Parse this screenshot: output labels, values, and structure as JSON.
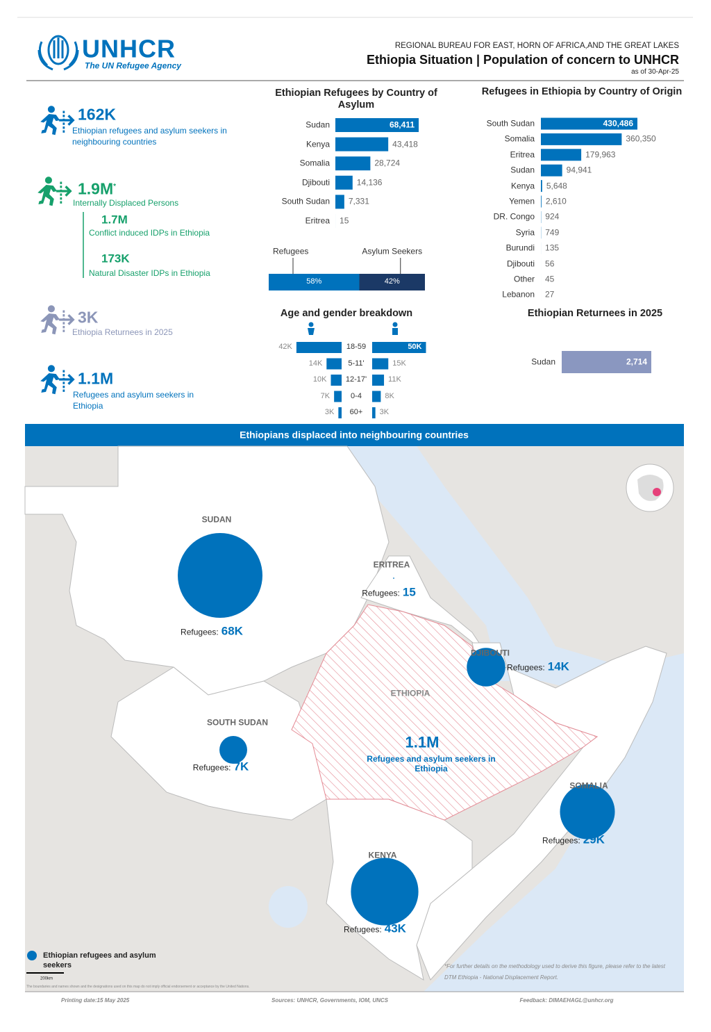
{
  "header": {
    "org": "UNHCR",
    "tagline": "The UN Refugee Agency",
    "bureau": "REGIONAL BUREAU FOR EAST, HORN OF AFRICA,AND THE GREAT LAKES",
    "title": "Ethiopia Situation | Population of concern to UNHCR",
    "date": "as of 30-Apr-25"
  },
  "kpis": [
    {
      "value": "162K",
      "label": "Ethiopian refugees and asylum seekers in neighbouring countries"
    },
    {
      "value": "1.9M",
      "mark": "*",
      "label": "Internally Displaced Persons",
      "breakdown": [
        {
          "value": "1.7M",
          "label": "Conflict induced IDPs in Ethiopia"
        },
        {
          "value": "173K",
          "label": "Natural Disaster IDPs in Ethiopia"
        }
      ]
    },
    {
      "value": "3K",
      "label": "Ethiopia Returnees in 2025"
    },
    {
      "value": "1.1M",
      "label": "Refugees and asylum seekers in Ethiopia"
    }
  ],
  "chart_data": [
    {
      "type": "bar",
      "title": "Ethiopian Refugees by Country of Asylum",
      "color": "#0072bc",
      "categories": [
        "Sudan",
        "Kenya",
        "Somalia",
        "Djibouti",
        "South Sudan",
        "Eritrea"
      ],
      "values": [
        68411,
        43418,
        28724,
        14136,
        7331,
        15
      ],
      "value_labels": [
        "68,411",
        "43,418",
        "28,724",
        "14,136",
        "7,331",
        "15"
      ]
    },
    {
      "type": "stacked_bar",
      "series": [
        {
          "name": "Refugees",
          "color": "#0072bc",
          "values": [
            58
          ],
          "value_labels": [
            "58%"
          ]
        },
        {
          "name": "Asylum Seekers",
          "color": "#1b3966",
          "values": [
            42
          ],
          "value_labels": [
            "42%"
          ]
        }
      ]
    },
    {
      "type": "bar",
      "title": "Refugees in Ethiopia by Country of Origin",
      "color": "#0072bc",
      "categories": [
        "South Sudan",
        "Somalia",
        "Eritrea",
        "Sudan",
        "Kenya",
        "Yemen",
        "DR. Congo",
        "Syria",
        "Burundi",
        "Djibouti",
        "Other",
        "Lebanon"
      ],
      "values": [
        430486,
        360350,
        179963,
        94941,
        5648,
        2610,
        924,
        749,
        135,
        56,
        45,
        27
      ],
      "value_labels": [
        "430,486",
        "360,350",
        "179,963",
        "94,941",
        "5,648",
        "2,610",
        "924",
        "749",
        "135",
        "56",
        "45",
        "27"
      ]
    },
    {
      "type": "pyramid",
      "title": "Age and gender breakdown",
      "categories": [
        "18-59",
        "5-11'",
        "12-17'",
        "0-4",
        "60+"
      ],
      "series": [
        {
          "color": "#0072bc",
          "values": [
            42,
            14,
            10,
            7,
            3
          ],
          "value_labels": [
            "42K",
            "14K",
            "10K",
            "7K",
            "3K"
          ]
        },
        {
          "color": "#0072bc",
          "values": [
            50,
            15,
            11,
            8,
            3
          ],
          "value_labels": [
            "50K",
            "15K",
            "11K",
            "8K",
            "3K"
          ]
        }
      ]
    },
    {
      "type": "bar",
      "title": "Ethiopian Returnees in 2025",
      "color": "#8a97c0",
      "categories": [
        "Sudan"
      ],
      "values": [
        2714
      ],
      "value_labels": [
        "2,714"
      ]
    }
  ],
  "map": {
    "title": "Ethiopians displaced into neighbouring countries",
    "refugee_label": "Refugees:",
    "points": [
      {
        "name": "SUDAN",
        "value": 68411,
        "value_label": "68K"
      },
      {
        "name": "ERITREA",
        "value": 15
      },
      {
        "name": "DJIBOUTI",
        "value": 14136,
        "value_label": "14K"
      },
      {
        "name": "SOUTH SUDAN",
        "value": 7331,
        "value_label": "7K"
      },
      {
        "name": "SOMALIA",
        "value": 28724,
        "value_label": "29K"
      },
      {
        "name": "KENYA",
        "value": 43418,
        "value_label": "43K"
      }
    ],
    "ethiopia": {
      "name": "ETHIOPIA",
      "value": "1.1M",
      "label": "Refugees and asylum seekers in Ethiopia"
    },
    "legend": "Ethiopian refugees and asylum seekers",
    "scale": "200km",
    "footnote": "*For further details on the methodology used to derive this figure, please refer to the latest DTM Ethiopia - National Displacement Report.",
    "disclaimer": "The boundaries and names shown and the designations used on this map do not imply official endorsement or acceptance by the United Nations."
  },
  "footer": {
    "printing_date": "Printing date:15 May 2025",
    "sources": "Sources: UNHCR, Governments, IOM, UNCS",
    "feedback": "Feedback: DIMAEHAGL@unhcr.org"
  }
}
